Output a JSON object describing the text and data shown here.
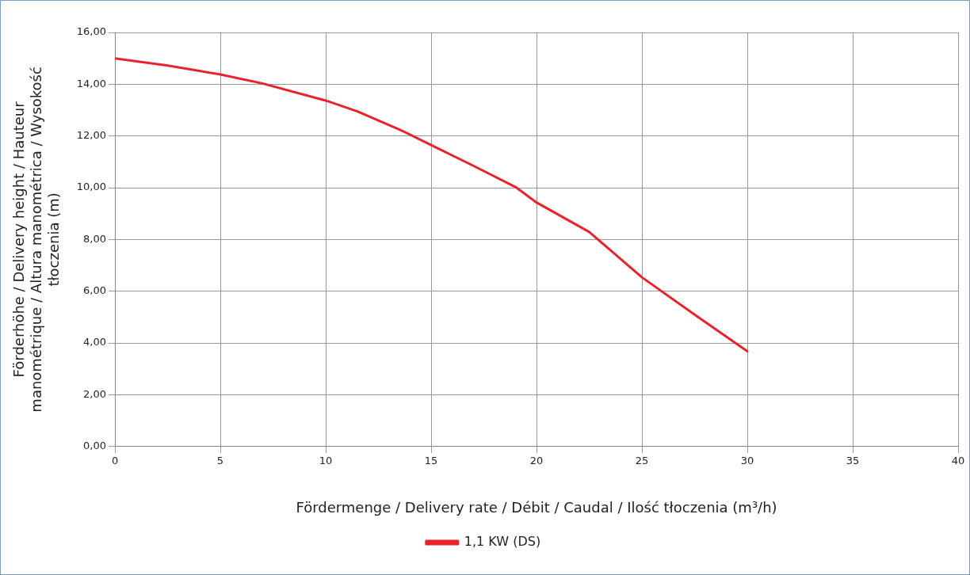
{
  "chart_data": {
    "type": "line",
    "xlabel": "Fördermenge / Delivery rate / Débit / Caudal / Ilość tłoczenia (m³/h)",
    "ylabel": "Förderhöhe / Delivery height / Hauteur manométrique / Altura manométrica / Wysokość tłoczenia (m)",
    "x": [
      0,
      2.5,
      5,
      7,
      10,
      11.5,
      13.5,
      15,
      17,
      19,
      20,
      22.5,
      25,
      27.5,
      30
    ],
    "series": [
      {
        "name": "1,1 KW (DS)",
        "color": "#e8232a",
        "values": [
          15.0,
          14.72,
          14.38,
          14.03,
          13.37,
          12.95,
          12.25,
          11.65,
          10.85,
          10.03,
          9.43,
          8.29,
          6.54,
          5.1,
          3.68
        ]
      }
    ],
    "xlim": [
      0,
      40
    ],
    "xticks": [
      0,
      5,
      10,
      15,
      20,
      25,
      30,
      35,
      40
    ],
    "ylim": [
      0,
      16
    ],
    "yticks": [
      {
        "value": 0,
        "label": "0,00"
      },
      {
        "value": 2,
        "label": "2,00"
      },
      {
        "value": 4,
        "label": "4,00"
      },
      {
        "value": 6,
        "label": "6,00"
      },
      {
        "value": 8,
        "label": "8,00"
      },
      {
        "value": 10,
        "label": "10,00"
      },
      {
        "value": 12,
        "label": "12,00"
      },
      {
        "value": 14,
        "label": "14,00"
      },
      {
        "value": 16,
        "label": "16,00"
      }
    ],
    "grid": true,
    "legend": "bottom",
    "marker": "none",
    "line_style": "solid"
  }
}
